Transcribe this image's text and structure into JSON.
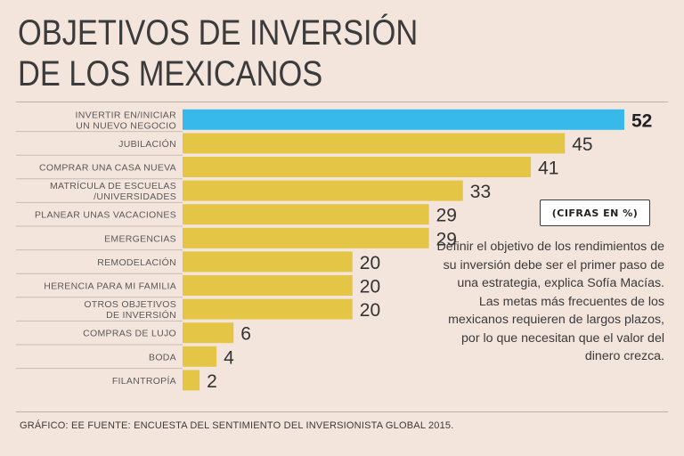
{
  "title_lines": [
    "OBJETIVOS DE INVERSIÓN",
    "DE LOS MEXICANOS"
  ],
  "units": "(CIFRAS EN %)",
  "note": "Definir el objetivo de los rendimientos de su inversión debe ser el primer paso de una estrategia, explica Sofía Macías. Las metas más frecuentes de los mexicanos requieren de largos plazos, por lo que necesitan que el valor del dinero crezca.",
  "footer": "GRÁFICO: EE  FUENTE: ENCUESTA DEL SENTIMIENTO DEL INVERSIONISTA GLOBAL 2015.",
  "colors": {
    "highlight": "#37b9ec",
    "bar": "#e5c545",
    "separator": "#c9bcb4"
  },
  "chart_data": {
    "type": "bar",
    "orientation": "horizontal",
    "title": "OBJETIVOS DE INVERSIÓN DE LOS MEXICANOS",
    "unit": "%",
    "highlight_index": 0,
    "categories": [
      [
        "INVERTIR EN/INICIAR",
        "UN NUEVO NEGOCIO"
      ],
      [
        "JUBILACIÓN"
      ],
      [
        "COMPRAR UNA CASA NUEVA"
      ],
      [
        "MATRÍCULA DE ESCUELAS",
        "/UNIVERSIDADES"
      ],
      [
        "PLANEAR UNAS VACACIONES"
      ],
      [
        "EMERGENCIAS"
      ],
      [
        "REMODELACIÓN"
      ],
      [
        "HERENCIA PARA MI FAMILIA"
      ],
      [
        "OTROS OBJETIVOS",
        "DE INVERSIÓN"
      ],
      [
        "COMPRAS DE LUJO"
      ],
      [
        "BODA"
      ],
      [
        "FILANTROPÍA"
      ]
    ],
    "values": [
      52,
      45,
      41,
      33,
      29,
      29,
      20,
      20,
      20,
      6,
      4,
      2
    ],
    "xlim": [
      0,
      52
    ],
    "grid": false,
    "legend": "none"
  }
}
